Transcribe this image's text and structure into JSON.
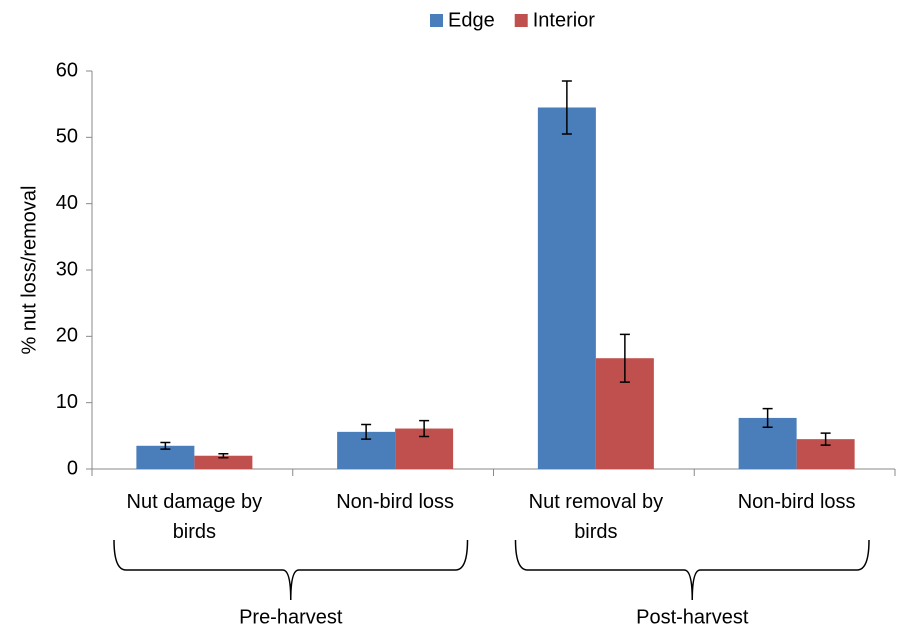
{
  "chart_data": {
    "type": "bar",
    "y_label": "% nut loss/removal",
    "categories": [
      "Nut damage by birds",
      "Non-bird loss",
      "Nut removal by birds",
      "Non-bird loss"
    ],
    "groups": [
      "Pre-harvest",
      "Post-harvest"
    ],
    "series": [
      {
        "name": "Edge",
        "color": "#4a7ebb",
        "values": [
          3.5,
          5.6,
          54.5,
          7.7
        ],
        "errors": [
          0.5,
          1.1,
          4.0,
          1.4
        ]
      },
      {
        "name": "Interior",
        "color": "#c0504d",
        "values": [
          2.0,
          6.1,
          16.7,
          4.5
        ],
        "errors": [
          0.3,
          1.2,
          3.6,
          0.9
        ]
      }
    ],
    "ylim": [
      0,
      60
    ],
    "yticks": [
      0,
      10,
      20,
      30,
      40,
      50,
      60
    ],
    "legend": "top"
  }
}
